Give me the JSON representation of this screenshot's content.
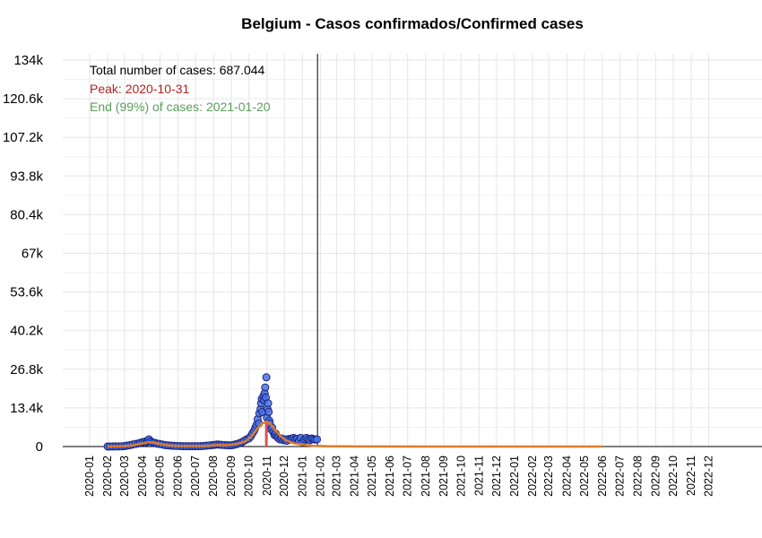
{
  "chart_data": {
    "type": "scatter",
    "title": "Belgium - Casos confirmados/Confirmed cases",
    "xlabel": "",
    "ylabel": "",
    "x_range": [
      "2020-01-01",
      "2022-12-31"
    ],
    "ylim": [
      0,
      134000
    ],
    "grid": true,
    "x_ticks": [
      "2020-01",
      "2020-02",
      "2020-03",
      "2020-04",
      "2020-05",
      "2020-06",
      "2020-07",
      "2020-08",
      "2020-09",
      "2020-10",
      "2020-11",
      "2020-12",
      "2021-01",
      "2021-02",
      "2021-03",
      "2021-04",
      "2021-05",
      "2021-06",
      "2021-07",
      "2021-08",
      "2021-09",
      "2021-10",
      "2021-11",
      "2021-12",
      "2022-01",
      "2022-02",
      "2022-03",
      "2022-04",
      "2022-05",
      "2022-06",
      "2022-07",
      "2022-08",
      "2022-09",
      "2022-10",
      "2022-11",
      "2022-12"
    ],
    "y_ticks": [
      0,
      13400,
      26800,
      40200,
      53600,
      67000,
      80400,
      93800,
      107200,
      120600,
      134000
    ],
    "y_tick_labels": [
      "0",
      "13.4k",
      "26.8k",
      "40.2k",
      "53.6k",
      "67k",
      "80.4k",
      "93.8k",
      "107.2k",
      "120.6k",
      "134k"
    ],
    "annotations": {
      "total": "Total number of cases: 687.044",
      "peak": "Peak: 2020-10-31",
      "end": "End (99%) of cases: 2021-01-20"
    },
    "colors": {
      "points_fill": "#4a74e0",
      "points_stroke": "#1a237e",
      "fit_line": "#e07b2a",
      "peak_line": "#d9534f",
      "total_text": "#000000",
      "peak_text": "#b22222",
      "end_text": "#5a9e5a"
    },
    "vline_date": "2021-01-27",
    "peak_date": "2020-10-31",
    "peak_value": 8600,
    "fit_end_date": "2022-06-01",
    "series": [
      {
        "name": "Confirmed cases",
        "points": [
          [
            "2020-02-01",
            10
          ],
          [
            "2020-02-05",
            15
          ],
          [
            "2020-02-10",
            20
          ],
          [
            "2020-02-15",
            30
          ],
          [
            "2020-02-20",
            40
          ],
          [
            "2020-02-25",
            60
          ],
          [
            "2020-03-01",
            150
          ],
          [
            "2020-03-05",
            300
          ],
          [
            "2020-03-10",
            450
          ],
          [
            "2020-03-15",
            700
          ],
          [
            "2020-03-20",
            900
          ],
          [
            "2020-03-25",
            1100
          ],
          [
            "2020-03-28",
            1300
          ],
          [
            "2020-04-01",
            1500
          ],
          [
            "2020-04-05",
            1700
          ],
          [
            "2020-04-08",
            1500
          ],
          [
            "2020-04-10",
            2000
          ],
          [
            "2020-04-12",
            2500
          ],
          [
            "2020-04-15",
            1800
          ],
          [
            "2020-04-18",
            1400
          ],
          [
            "2020-04-22",
            1300
          ],
          [
            "2020-04-26",
            1000
          ],
          [
            "2020-04-30",
            900
          ],
          [
            "2020-05-05",
            700
          ],
          [
            "2020-05-10",
            500
          ],
          [
            "2020-05-15",
            400
          ],
          [
            "2020-05-20",
            300
          ],
          [
            "2020-05-25",
            250
          ],
          [
            "2020-05-30",
            200
          ],
          [
            "2020-06-05",
            150
          ],
          [
            "2020-06-10",
            120
          ],
          [
            "2020-06-15",
            100
          ],
          [
            "2020-06-20",
            100
          ],
          [
            "2020-06-25",
            100
          ],
          [
            "2020-06-30",
            110
          ],
          [
            "2020-07-05",
            120
          ],
          [
            "2020-07-10",
            150
          ],
          [
            "2020-07-15",
            200
          ],
          [
            "2020-07-20",
            300
          ],
          [
            "2020-07-25",
            400
          ],
          [
            "2020-07-30",
            500
          ],
          [
            "2020-08-03",
            600
          ],
          [
            "2020-08-07",
            700
          ],
          [
            "2020-08-11",
            650
          ],
          [
            "2020-08-15",
            600
          ],
          [
            "2020-08-20",
            500
          ],
          [
            "2020-08-25",
            450
          ],
          [
            "2020-08-30",
            400
          ],
          [
            "2020-09-03",
            500
          ],
          [
            "2020-09-07",
            700
          ],
          [
            "2020-09-11",
            900
          ],
          [
            "2020-09-15",
            1200
          ],
          [
            "2020-09-19",
            1500
          ],
          [
            "2020-09-23",
            2000
          ],
          [
            "2020-09-27",
            2500
          ],
          [
            "2020-10-01",
            2800
          ],
          [
            "2020-10-04",
            3500
          ],
          [
            "2020-10-07",
            4500
          ],
          [
            "2020-10-10",
            5500
          ],
          [
            "2020-10-12",
            6500
          ],
          [
            "2020-10-14",
            7500
          ],
          [
            "2020-10-16",
            9500
          ],
          [
            "2020-10-18",
            8000
          ],
          [
            "2020-10-19",
            11500
          ],
          [
            "2020-10-21",
            13000
          ],
          [
            "2020-10-22",
            15000
          ],
          [
            "2020-10-23",
            16500
          ],
          [
            "2020-10-24",
            12000
          ],
          [
            "2020-10-26",
            17500
          ],
          [
            "2020-10-27",
            16000
          ],
          [
            "2020-10-28",
            18500
          ],
          [
            "2020-10-29",
            20500
          ],
          [
            "2020-10-30",
            17000
          ],
          [
            "2020-10-31",
            24000
          ],
          [
            "2020-11-01",
            10000
          ],
          [
            "2020-11-02",
            13000
          ],
          [
            "2020-11-03",
            15000
          ],
          [
            "2020-11-04",
            12000
          ],
          [
            "2020-11-05",
            9000
          ],
          [
            "2020-11-06",
            8000
          ],
          [
            "2020-11-08",
            6000
          ],
          [
            "2020-11-10",
            6500
          ],
          [
            "2020-11-12",
            5000
          ],
          [
            "2020-11-14",
            4000
          ],
          [
            "2020-11-16",
            4500
          ],
          [
            "2020-11-18",
            3500
          ],
          [
            "2020-11-20",
            3000
          ],
          [
            "2020-11-23",
            2500
          ],
          [
            "2020-11-26",
            2800
          ],
          [
            "2020-11-29",
            2200
          ],
          [
            "2020-12-02",
            2500
          ],
          [
            "2020-12-05",
            2000
          ],
          [
            "2020-12-08",
            2600
          ],
          [
            "2020-12-11",
            2400
          ],
          [
            "2020-12-14",
            2800
          ],
          [
            "2020-12-17",
            3000
          ],
          [
            "2020-12-20",
            2500
          ],
          [
            "2020-12-23",
            2700
          ],
          [
            "2020-12-26",
            2000
          ],
          [
            "2020-12-29",
            3000
          ],
          [
            "2021-01-02",
            1500
          ],
          [
            "2021-01-05",
            2500
          ],
          [
            "2021-01-08",
            3000
          ],
          [
            "2021-01-11",
            2500
          ],
          [
            "2021-01-14",
            2200
          ],
          [
            "2021-01-17",
            2800
          ],
          [
            "2021-01-20",
            2600
          ],
          [
            "2021-01-23",
            2400
          ],
          [
            "2021-01-26",
            2500
          ]
        ]
      }
    ],
    "fit": [
      [
        "2020-02-01",
        0
      ],
      [
        "2020-02-15",
        20
      ],
      [
        "2020-03-01",
        150
      ],
      [
        "2020-03-15",
        450
      ],
      [
        "2020-04-01",
        1100
      ],
      [
        "2020-04-10",
        1500
      ],
      [
        "2020-04-20",
        1400
      ],
      [
        "2020-05-01",
        900
      ],
      [
        "2020-05-15",
        450
      ],
      [
        "2020-06-01",
        200
      ],
      [
        "2020-07-01",
        150
      ],
      [
        "2020-07-20",
        250
      ],
      [
        "2020-08-05",
        500
      ],
      [
        "2020-08-25",
        500
      ],
      [
        "2020-09-10",
        900
      ],
      [
        "2020-09-25",
        1800
      ],
      [
        "2020-10-05",
        3500
      ],
      [
        "2020-10-15",
        6000
      ],
      [
        "2020-10-24",
        8000
      ],
      [
        "2020-10-31",
        8600
      ],
      [
        "2020-11-07",
        7800
      ],
      [
        "2020-11-15",
        5800
      ],
      [
        "2020-11-25",
        3500
      ],
      [
        "2020-12-05",
        2000
      ],
      [
        "2020-12-20",
        1000
      ],
      [
        "2021-01-05",
        500
      ],
      [
        "2021-01-20",
        250
      ],
      [
        "2021-02-15",
        100
      ],
      [
        "2021-04-01",
        20
      ],
      [
        "2021-08-01",
        0
      ],
      [
        "2022-06-01",
        0
      ]
    ]
  }
}
